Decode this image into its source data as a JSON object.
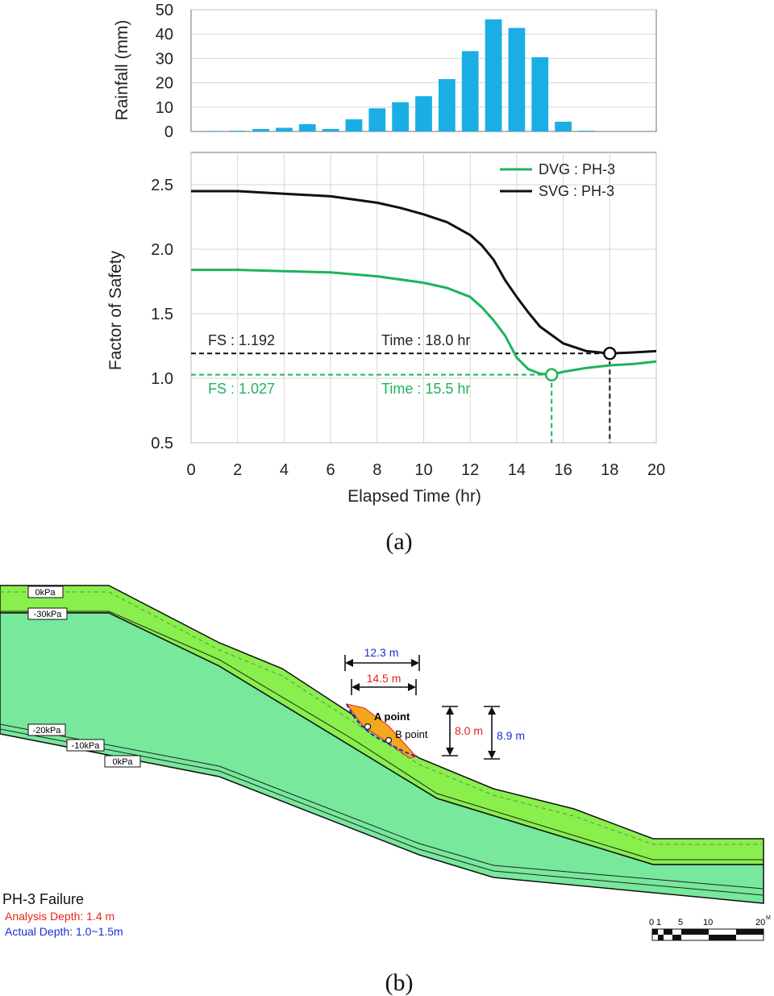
{
  "panel_a": {
    "caption": "(a)",
    "chart_data": [
      {
        "type": "bar",
        "ylabel": "Rainfall (mm)",
        "xlim": [
          0,
          20
        ],
        "ylim": [
          0,
          50
        ],
        "yticks": [
          0,
          10,
          20,
          30,
          40,
          50
        ],
        "grid": true,
        "color": "#1aaee5",
        "x": [
          1,
          2,
          3,
          4,
          5,
          6,
          7,
          8,
          9,
          10,
          11,
          12,
          13,
          14,
          15,
          16,
          17
        ],
        "values": [
          0.2,
          0.3,
          1.0,
          1.5,
          3.0,
          1.0,
          5.0,
          9.5,
          12.0,
          14.5,
          21.5,
          33.0,
          46.0,
          42.5,
          30.5,
          4.0,
          0.3
        ]
      },
      {
        "type": "line",
        "xlabel": "Elapsed Time (hr)",
        "ylabel": "Factor of Safety",
        "xlim": [
          0,
          20
        ],
        "ylim": [
          0.5,
          2.75
        ],
        "xticks": [
          0,
          2,
          4,
          6,
          8,
          10,
          12,
          14,
          16,
          18,
          20
        ],
        "yticks": [
          0.5,
          1.0,
          1.5,
          2.0,
          2.5
        ],
        "grid": true,
        "legend_position": "top-right",
        "series": [
          {
            "name": "DVG : PH-3",
            "color": "#1db45a",
            "x": [
              0,
              2,
              4,
              6,
              8,
              10,
              11,
              12,
              12.5,
              13,
              13.5,
              14,
              14.5,
              15,
              15.5,
              16,
              17,
              18,
              19,
              20
            ],
            "y": [
              1.84,
              1.84,
              1.83,
              1.82,
              1.79,
              1.74,
              1.7,
              1.63,
              1.55,
              1.45,
              1.33,
              1.16,
              1.07,
              1.035,
              1.027,
              1.05,
              1.08,
              1.1,
              1.11,
              1.13
            ]
          },
          {
            "name": "SVG : PH-3",
            "color": "#111111",
            "x": [
              0,
              2,
              4,
              6,
              8,
              9,
              10,
              11,
              12,
              12.5,
              13,
              13.5,
              14,
              14.5,
              15,
              16,
              17,
              18,
              19,
              20
            ],
            "y": [
              2.45,
              2.45,
              2.43,
              2.41,
              2.36,
              2.32,
              2.27,
              2.21,
              2.11,
              2.03,
              1.92,
              1.76,
              1.63,
              1.51,
              1.4,
              1.27,
              1.21,
              1.192,
              1.2,
              1.21
            ]
          }
        ],
        "annotations": {
          "svg_fs": "FS : 1.192",
          "svg_time": "Time : 18.0 hr",
          "dvg_fs": "FS : 1.027",
          "dvg_time": "Time : 15.5 hr",
          "svg_min": [
            18.0,
            1.192
          ],
          "dvg_min": [
            15.5,
            1.027
          ]
        }
      }
    ]
  },
  "panel_b": {
    "caption": "(b)",
    "pressure_labels": [
      "0kPa",
      "-30kPa",
      "-20kPa",
      "-10kPa",
      "0kPa"
    ],
    "dim_top_blue": "12.3 m",
    "dim_top_red": "14.5 m",
    "dim_right_red": "8.0 m",
    "dim_right_blue": "8.9 m",
    "point_a": "A point",
    "point_b": "B point",
    "failure_title": "PH-3 Failure",
    "analysis_depth": "Analysis Depth: 1.4 m",
    "actual_depth": "Actual Depth: 1.0~1.5m",
    "scale_labels": [
      "0",
      "1",
      "5",
      "10",
      "20"
    ],
    "scale_unit": "M",
    "colors": {
      "upper_layer": "#88ef4c",
      "lower_layer": "#77e89c",
      "red": "#e8221b",
      "blue": "#1a2fd0"
    }
  }
}
